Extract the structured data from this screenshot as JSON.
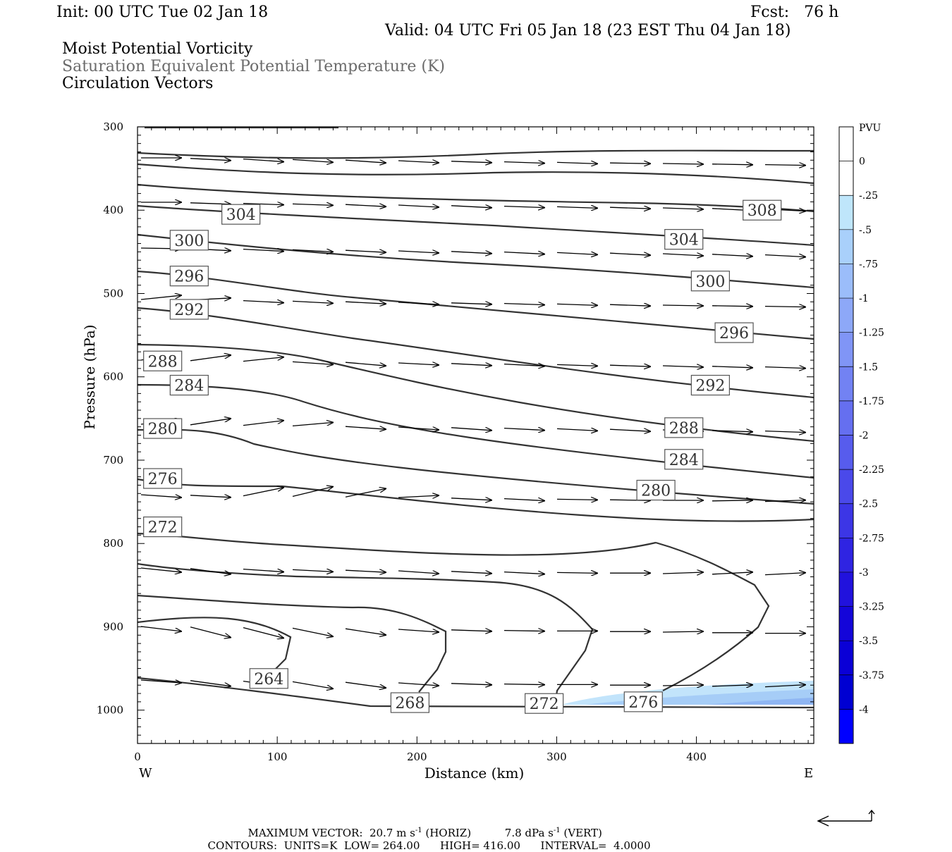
{
  "header": {
    "init": "Init: 00 UTC Tue 02 Jan 18",
    "fcst": "Fcst:   76 h",
    "valid": "Valid: 04 UTC Fri 05 Jan 18 (23 EST Thu 04 Jan 18)",
    "fields": [
      "Moist Potential Vorticity",
      "Saturation Equivalent Potential Temperature (K)",
      "Circulation Vectors"
    ]
  },
  "colors": {
    "contour": "#333333",
    "label_gray": "#6b6b6b",
    "pv_scale": [
      "#ffffff",
      "#ffffff",
      "#bfe6fb",
      "#a9d0fb",
      "#9bbdfa",
      "#8da8f8",
      "#8095f6",
      "#7282f3",
      "#656ff0",
      "#575ced",
      "#4a49ea",
      "#3c36e6",
      "#2f24e2",
      "#2112dd",
      "#1405d9",
      "#0a00d6",
      "#0000d2",
      "#0000ff"
    ]
  },
  "chart_data": {
    "type": "contour",
    "xlabel": "Distance (km)",
    "ylabel": "Pressure (hPa)",
    "x_ticks": [
      0,
      100,
      200,
      300,
      400
    ],
    "y_ticks": [
      300,
      400,
      500,
      600,
      700,
      800,
      900,
      1000
    ],
    "xlim": [
      0,
      484
    ],
    "ylim": [
      1040,
      300
    ],
    "x_end_labels": {
      "left": "W",
      "right": "E"
    },
    "colorbar": {
      "title": "PVU",
      "labels": [
        "0",
        "-.25",
        "-.5",
        "-.75",
        "-1",
        "-1.25",
        "-1.5",
        "-1.75",
        "-2",
        "-2.25",
        "-2.5",
        "-2.75",
        "-3",
        "-3.25",
        "-3.5",
        "-3.75",
        "-4"
      ]
    },
    "contour_labels": [
      {
        "text": "304",
        "x": 74,
        "p": 405
      },
      {
        "text": "308",
        "x": 447,
        "p": 400
      },
      {
        "text": "300",
        "x": 37,
        "p": 436
      },
      {
        "text": "304",
        "x": 391,
        "p": 435
      },
      {
        "text": "296",
        "x": 37,
        "p": 479
      },
      {
        "text": "300",
        "x": 410,
        "p": 485
      },
      {
        "text": "292",
        "x": 37,
        "p": 519
      },
      {
        "text": "296",
        "x": 427,
        "p": 547
      },
      {
        "text": "288",
        "x": 18,
        "p": 581
      },
      {
        "text": "292",
        "x": 410,
        "p": 610
      },
      {
        "text": "284",
        "x": 37,
        "p": 610
      },
      {
        "text": "280",
        "x": 18,
        "p": 662
      },
      {
        "text": "288",
        "x": 391,
        "p": 661
      },
      {
        "text": "284",
        "x": 391,
        "p": 699
      },
      {
        "text": "276",
        "x": 18,
        "p": 722
      },
      {
        "text": "280",
        "x": 371,
        "p": 736
      },
      {
        "text": "272",
        "x": 18,
        "p": 780
      },
      {
        "text": "264",
        "x": 94,
        "p": 962
      },
      {
        "text": "268",
        "x": 195,
        "p": 991
      },
      {
        "text": "272",
        "x": 291,
        "p": 992
      },
      {
        "text": "276",
        "x": 362,
        "p": 990
      }
    ],
    "footer": {
      "max_vector_label": "MAXIMUM VECTOR:",
      "max_vector_horiz": "20.7",
      "horiz_unit": "m s",
      "horiz_tag": "(HORIZ)",
      "max_vector_vert": "7.8",
      "vert_unit": "dPa s",
      "vert_tag": "(VERT)",
      "exponent": "-1",
      "contours_label": "CONTOURS:",
      "units": "UNITS=K",
      "low_label": "LOW=",
      "low": "264.00",
      "high_label": "HIGH=",
      "high": "416.00",
      "interval_label": "INTERVAL=",
      "interval": "4.0000"
    }
  }
}
